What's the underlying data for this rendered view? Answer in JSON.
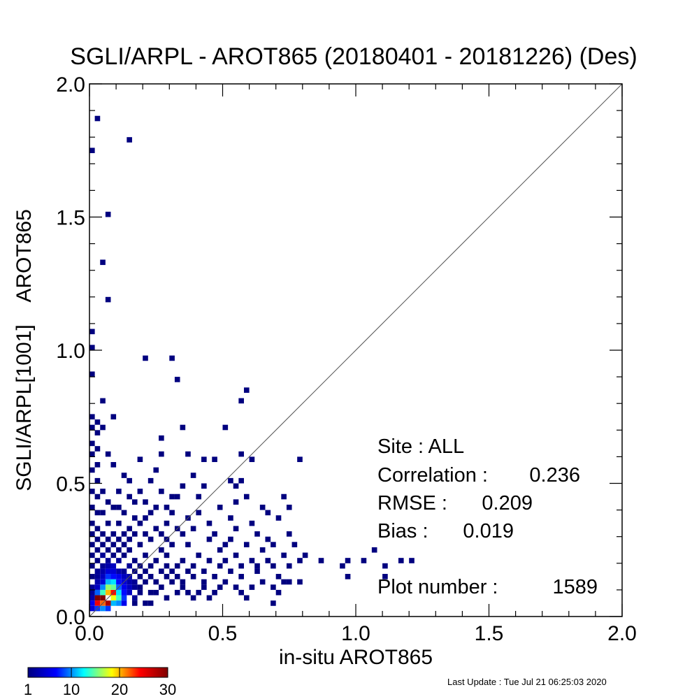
{
  "chart_data": {
    "type": "heatmap",
    "title": "SGLI/ARPL - AROT865 (20180401 - 20181226) (Des)",
    "xlabel": "in-situ AROT865",
    "ylabel": "SGLI/ARPL[1001]    AROT865",
    "xlim": [
      0,
      2
    ],
    "ylim": [
      0,
      2
    ],
    "x_ticks": [
      "0.0",
      "0.5",
      "1.0",
      "1.5",
      "2.0"
    ],
    "y_ticks": [
      "0.0",
      "0.5",
      "1.0",
      "1.5",
      "2.0"
    ],
    "bin_size": 0.02,
    "reference_line": "1:1",
    "stats": {
      "site": "Site : ALL",
      "correlation_label": "Correlation :",
      "correlation": "0.236",
      "rmse_label": "RMSE :",
      "rmse": "0.209",
      "bias_label": "Bias :",
      "bias": "0.019",
      "plot_number_label": "Plot number :",
      "plot_number": "1589"
    },
    "colorbar": {
      "min": 1,
      "max": 30,
      "tick_labels": [
        "1",
        "10",
        "20",
        "30"
      ],
      "tick_values": [
        1,
        10,
        20,
        30
      ],
      "colors": [
        "#00007f",
        "#0000ff",
        "#00ffff",
        "#ffff00",
        "#ff0000",
        "#7f0000"
      ]
    },
    "cells": [
      [
        0.03,
        0.07,
        30
      ],
      [
        0.05,
        0.07,
        30
      ],
      [
        0.03,
        0.05,
        25
      ],
      [
        0.07,
        0.05,
        28
      ],
      [
        0.05,
        0.05,
        22
      ],
      [
        0.09,
        0.09,
        24
      ],
      [
        0.07,
        0.09,
        20
      ],
      [
        0.07,
        0.11,
        16
      ],
      [
        0.05,
        0.09,
        14
      ],
      [
        0.09,
        0.07,
        18
      ],
      [
        0.11,
        0.07,
        14
      ],
      [
        0.11,
        0.09,
        12
      ],
      [
        0.09,
        0.11,
        15
      ],
      [
        0.09,
        0.13,
        12
      ],
      [
        0.07,
        0.13,
        11
      ],
      [
        0.07,
        0.15,
        8
      ],
      [
        0.05,
        0.11,
        10
      ],
      [
        0.03,
        0.09,
        9
      ],
      [
        0.01,
        0.05,
        6
      ],
      [
        0.01,
        0.03,
        5
      ],
      [
        0.03,
        0.03,
        8
      ],
      [
        0.05,
        0.03,
        10
      ],
      [
        0.07,
        0.03,
        8
      ],
      [
        0.09,
        0.05,
        11
      ],
      [
        0.11,
        0.05,
        10
      ],
      [
        0.13,
        0.05,
        6
      ],
      [
        0.13,
        0.07,
        8
      ],
      [
        0.13,
        0.09,
        7
      ],
      [
        0.13,
        0.11,
        6
      ],
      [
        0.11,
        0.11,
        9
      ],
      [
        0.11,
        0.13,
        7
      ],
      [
        0.09,
        0.15,
        7
      ],
      [
        0.11,
        0.15,
        6
      ],
      [
        0.13,
        0.13,
        5
      ],
      [
        0.15,
        0.09,
        4
      ],
      [
        0.15,
        0.11,
        4
      ],
      [
        0.15,
        0.13,
        3
      ],
      [
        0.15,
        0.15,
        3
      ],
      [
        0.13,
        0.15,
        4
      ],
      [
        0.09,
        0.17,
        5
      ],
      [
        0.07,
        0.17,
        5
      ],
      [
        0.05,
        0.15,
        4
      ],
      [
        0.05,
        0.13,
        5
      ],
      [
        0.03,
        0.11,
        4
      ],
      [
        0.03,
        0.13,
        3
      ],
      [
        0.05,
        0.17,
        3
      ],
      [
        0.07,
        0.19,
        3
      ],
      [
        0.09,
        0.19,
        4
      ],
      [
        0.11,
        0.17,
        3
      ],
      [
        0.13,
        0.17,
        2
      ],
      [
        0.03,
        0.15,
        2
      ],
      [
        0.01,
        0.07,
        3
      ],
      [
        0.01,
        0.09,
        2
      ],
      [
        0.01,
        0.11,
        2
      ],
      [
        0.17,
        0.07,
        2
      ],
      [
        0.17,
        0.11,
        2
      ],
      [
        0.17,
        0.13,
        2
      ],
      [
        0.19,
        0.09,
        1
      ],
      [
        0.05,
        0.19,
        2
      ],
      [
        0.03,
        0.17,
        2
      ],
      [
        0.01,
        0.15,
        1
      ],
      [
        0.01,
        0.19,
        1
      ],
      [
        0.01,
        0.23,
        1
      ],
      [
        0.01,
        0.27,
        1
      ],
      [
        0.03,
        0.21,
        1
      ],
      [
        0.03,
        0.25,
        1
      ],
      [
        0.05,
        0.23,
        2
      ],
      [
        0.07,
        0.21,
        2
      ],
      [
        0.07,
        0.25,
        1
      ],
      [
        0.09,
        0.23,
        1
      ],
      [
        0.11,
        0.21,
        2
      ],
      [
        0.11,
        0.25,
        1
      ],
      [
        0.13,
        0.23,
        1
      ],
      [
        0.13,
        0.27,
        1
      ],
      [
        0.15,
        0.19,
        2
      ],
      [
        0.15,
        0.25,
        1
      ],
      [
        0.17,
        0.21,
        1
      ],
      [
        0.17,
        0.17,
        1
      ],
      [
        0.19,
        0.15,
        1
      ],
      [
        0.19,
        0.19,
        1
      ],
      [
        0.21,
        0.13,
        1
      ],
      [
        0.21,
        0.17,
        1
      ],
      [
        0.21,
        0.23,
        1
      ],
      [
        0.23,
        0.15,
        1
      ],
      [
        0.23,
        0.19,
        1
      ],
      [
        0.25,
        0.13,
        1
      ],
      [
        0.25,
        0.21,
        1
      ],
      [
        0.27,
        0.17,
        1
      ],
      [
        0.27,
        0.25,
        1
      ],
      [
        0.29,
        0.15,
        1
      ],
      [
        0.29,
        0.19,
        1
      ],
      [
        0.29,
        0.23,
        1
      ],
      [
        0.31,
        0.13,
        1
      ],
      [
        0.31,
        0.17,
        1
      ],
      [
        0.31,
        0.27,
        1
      ],
      [
        0.33,
        0.19,
        1
      ],
      [
        0.33,
        0.15,
        1
      ],
      [
        0.35,
        0.21,
        1
      ],
      [
        0.35,
        0.13,
        1
      ],
      [
        0.37,
        0.17,
        1
      ],
      [
        0.37,
        0.27,
        1
      ],
      [
        0.39,
        0.19,
        1
      ],
      [
        0.39,
        0.15,
        1
      ],
      [
        0.41,
        0.23,
        1
      ],
      [
        0.43,
        0.13,
        1
      ],
      [
        0.43,
        0.17,
        1
      ],
      [
        0.45,
        0.21,
        1
      ],
      [
        0.45,
        0.29,
        1
      ],
      [
        0.47,
        0.15,
        1
      ],
      [
        0.49,
        0.19,
        1
      ],
      [
        0.49,
        0.25,
        1
      ],
      [
        0.51,
        0.13,
        1
      ],
      [
        0.51,
        0.21,
        1
      ],
      [
        0.53,
        0.17,
        1
      ],
      [
        0.53,
        0.29,
        1
      ],
      [
        0.55,
        0.23,
        1
      ],
      [
        0.57,
        0.19,
        1
      ],
      [
        0.57,
        0.15,
        1
      ],
      [
        0.59,
        0.27,
        1
      ],
      [
        0.61,
        0.21,
        1
      ],
      [
        0.63,
        0.17,
        1
      ],
      [
        0.63,
        0.19,
        1
      ],
      [
        0.65,
        0.25,
        1
      ],
      [
        0.67,
        0.21,
        1
      ],
      [
        0.67,
        0.29,
        1
      ],
      [
        0.69,
        0.19,
        1
      ],
      [
        0.71,
        0.15,
        1
      ],
      [
        0.73,
        0.23,
        1
      ],
      [
        0.75,
        0.19,
        1
      ],
      [
        0.77,
        0.27,
        1
      ],
      [
        0.79,
        0.21,
        1
      ],
      [
        0.81,
        0.23,
        1
      ],
      [
        0.87,
        0.21,
        1
      ],
      [
        0.95,
        0.19,
        1
      ],
      [
        0.97,
        0.21,
        1
      ],
      [
        1.03,
        0.21,
        1
      ],
      [
        1.07,
        0.25,
        1
      ],
      [
        1.11,
        0.19,
        1
      ],
      [
        1.17,
        0.21,
        1
      ],
      [
        1.21,
        0.21,
        1
      ],
      [
        0.97,
        0.15,
        1
      ],
      [
        1.11,
        0.15,
        1
      ],
      [
        0.79,
        0.13,
        1
      ],
      [
        0.75,
        0.13,
        1
      ],
      [
        0.73,
        0.13,
        1
      ],
      [
        0.69,
        0.11,
        1
      ],
      [
        0.71,
        0.09,
        1
      ],
      [
        0.69,
        0.05,
        1
      ],
      [
        0.59,
        0.07,
        1
      ],
      [
        0.55,
        0.11,
        1
      ],
      [
        0.47,
        0.09,
        1
      ],
      [
        0.43,
        0.11,
        1
      ],
      [
        0.41,
        0.09,
        1
      ],
      [
        0.39,
        0.07,
        1
      ],
      [
        0.33,
        0.09,
        1
      ],
      [
        0.29,
        0.07,
        1
      ],
      [
        0.27,
        0.11,
        1
      ],
      [
        0.23,
        0.09,
        1
      ],
      [
        0.21,
        0.05,
        1
      ],
      [
        0.19,
        0.11,
        1
      ],
      [
        0.17,
        0.05,
        1
      ],
      [
        0.23,
        0.05,
        1
      ],
      [
        0.25,
        0.09,
        1
      ],
      [
        0.35,
        0.11,
        1
      ],
      [
        0.37,
        0.09,
        1
      ],
      [
        0.45,
        0.07,
        1
      ],
      [
        0.49,
        0.11,
        1
      ],
      [
        0.57,
        0.09,
        1
      ],
      [
        0.61,
        0.11,
        1
      ],
      [
        0.65,
        0.13,
        1
      ],
      [
        0.01,
        0.31,
        1
      ],
      [
        0.01,
        0.35,
        1
      ],
      [
        0.01,
        0.41,
        1
      ],
      [
        0.01,
        0.47,
        1
      ],
      [
        0.01,
        0.55,
        1
      ],
      [
        0.01,
        0.61,
        1
      ],
      [
        0.01,
        0.65,
        1
      ],
      [
        0.01,
        0.71,
        1
      ],
      [
        0.01,
        0.75,
        1
      ],
      [
        0.01,
        0.91,
        1
      ],
      [
        0.01,
        1.01,
        1
      ],
      [
        0.01,
        1.07,
        1
      ],
      [
        0.01,
        1.75,
        1
      ],
      [
        0.03,
        0.73,
        1
      ],
      [
        0.03,
        0.69,
        1
      ],
      [
        0.03,
        0.63,
        1
      ],
      [
        0.03,
        0.57,
        1
      ],
      [
        0.03,
        0.51,
        1
      ],
      [
        0.03,
        0.45,
        1
      ],
      [
        0.03,
        0.39,
        1
      ],
      [
        0.03,
        0.33,
        1
      ],
      [
        0.03,
        0.29,
        1
      ],
      [
        0.03,
        1.87,
        1
      ],
      [
        0.05,
        0.39,
        1
      ],
      [
        0.05,
        0.31,
        1
      ],
      [
        0.05,
        0.27,
        1
      ],
      [
        0.05,
        0.71,
        1
      ],
      [
        0.05,
        0.81,
        1
      ],
      [
        0.05,
        1.33,
        1
      ],
      [
        0.07,
        0.61,
        1
      ],
      [
        0.07,
        0.35,
        1
      ],
      [
        0.07,
        0.29,
        1
      ],
      [
        0.07,
        1.19,
        1
      ],
      [
        0.07,
        1.51,
        1
      ],
      [
        0.09,
        0.75,
        1
      ],
      [
        0.09,
        0.41,
        1
      ],
      [
        0.09,
        0.31,
        1
      ],
      [
        0.09,
        0.27,
        1
      ],
      [
        0.11,
        0.35,
        1
      ],
      [
        0.11,
        0.29,
        1
      ],
      [
        0.11,
        0.47,
        1
      ],
      [
        0.13,
        0.39,
        1
      ],
      [
        0.13,
        0.31,
        1
      ],
      [
        0.15,
        0.33,
        1
      ],
      [
        0.15,
        0.29,
        1
      ],
      [
        0.15,
        0.51,
        1
      ],
      [
        0.15,
        1.79,
        1
      ],
      [
        0.17,
        0.43,
        1
      ],
      [
        0.17,
        0.37,
        1
      ],
      [
        0.17,
        0.31,
        1
      ],
      [
        0.19,
        0.35,
        1
      ],
      [
        0.19,
        0.27,
        1
      ],
      [
        0.19,
        0.47,
        1
      ],
      [
        0.19,
        0.59,
        1
      ],
      [
        0.21,
        0.37,
        1
      ],
      [
        0.21,
        0.31,
        1
      ],
      [
        0.21,
        0.43,
        1
      ],
      [
        0.21,
        0.97,
        1
      ],
      [
        0.23,
        0.29,
        1
      ],
      [
        0.23,
        0.51,
        1
      ],
      [
        0.25,
        0.33,
        1
      ],
      [
        0.25,
        0.41,
        1
      ],
      [
        0.27,
        0.31,
        1
      ],
      [
        0.27,
        0.47,
        1
      ],
      [
        0.27,
        0.67,
        1
      ],
      [
        0.29,
        0.35,
        1
      ],
      [
        0.29,
        0.29,
        1
      ],
      [
        0.31,
        0.97,
        1
      ],
      [
        0.31,
        0.39,
        1
      ],
      [
        0.33,
        0.33,
        1
      ],
      [
        0.33,
        0.89,
        1
      ],
      [
        0.35,
        0.31,
        1
      ],
      [
        0.35,
        0.71,
        1
      ],
      [
        0.37,
        0.37,
        1
      ],
      [
        0.37,
        0.61,
        1
      ],
      [
        0.39,
        0.33,
        1
      ],
      [
        0.41,
        0.45,
        1
      ],
      [
        0.43,
        0.59,
        1
      ],
      [
        0.45,
        0.35,
        1
      ],
      [
        0.47,
        0.59,
        1
      ],
      [
        0.49,
        0.41,
        1
      ],
      [
        0.51,
        0.71,
        1
      ],
      [
        0.53,
        0.37,
        1
      ],
      [
        0.55,
        0.43,
        1
      ],
      [
        0.55,
        0.49,
        1
      ],
      [
        0.57,
        0.81,
        1
      ],
      [
        0.57,
        0.61,
        1
      ],
      [
        0.59,
        0.85,
        1
      ],
      [
        0.59,
        0.45,
        1
      ],
      [
        0.61,
        0.59,
        1
      ],
      [
        0.61,
        0.35,
        1
      ],
      [
        0.65,
        0.41,
        1
      ],
      [
        0.67,
        0.39,
        1
      ],
      [
        0.71,
        0.37,
        1
      ],
      [
        0.73,
        0.45,
        1
      ],
      [
        0.75,
        0.41,
        1
      ],
      [
        0.79,
        0.59,
        1
      ],
      [
        0.43,
        0.49,
        1
      ],
      [
        0.39,
        0.53,
        1
      ],
      [
        0.35,
        0.49,
        1
      ],
      [
        0.31,
        0.45,
        1
      ],
      [
        0.25,
        0.55,
        1
      ],
      [
        0.27,
        0.61,
        1
      ],
      [
        0.13,
        0.53,
        1
      ],
      [
        0.09,
        0.57,
        1
      ],
      [
        0.05,
        0.47,
        1
      ],
      [
        0.07,
        0.43,
        1
      ],
      [
        0.11,
        0.41,
        1
      ],
      [
        0.15,
        0.45,
        1
      ],
      [
        0.23,
        0.39,
        1
      ],
      [
        0.29,
        0.41,
        1
      ],
      [
        0.33,
        0.45,
        1
      ],
      [
        0.41,
        0.39,
        1
      ],
      [
        0.47,
        0.31,
        1
      ],
      [
        0.51,
        0.27,
        1
      ],
      [
        0.55,
        0.33,
        1
      ],
      [
        0.63,
        0.31,
        1
      ],
      [
        0.69,
        0.27,
        1
      ],
      [
        0.75,
        0.31,
        1
      ],
      [
        0.57,
        0.51,
        1
      ],
      [
        0.53,
        0.51,
        1
      ]
    ]
  },
  "footer": {
    "last_update": "Last Update : Tue Jul 21 06:25:03 2020"
  }
}
